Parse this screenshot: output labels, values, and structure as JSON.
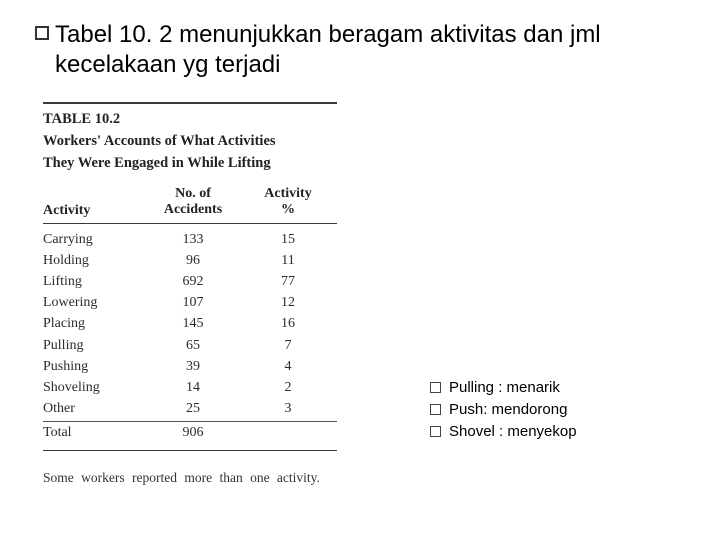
{
  "title": "Tabel 10. 2 menunjukkan beragam aktivitas dan jml kecelakaan yg terjadi",
  "table": {
    "caption_label": "TABLE 10.2",
    "caption_line1": "Workers' Accounts of What Activities",
    "caption_line2": "They Were Engaged in While Lifting",
    "headers": {
      "activity": "Activity",
      "no_of": "No. of",
      "accidents": "Accidents",
      "act2": "Activity",
      "pct": "%"
    },
    "rows": [
      {
        "a": "Carrying",
        "n": "133",
        "p": "15"
      },
      {
        "a": "Holding",
        "n": "96",
        "p": "11"
      },
      {
        "a": "Lifting",
        "n": "692",
        "p": "77"
      },
      {
        "a": "Lowering",
        "n": "107",
        "p": "12"
      },
      {
        "a": "Placing",
        "n": "145",
        "p": "16"
      },
      {
        "a": "Pulling",
        "n": "65",
        "p": "7"
      },
      {
        "a": "Pushing",
        "n": "39",
        "p": "4"
      },
      {
        "a": "Shoveling",
        "n": "14",
        "p": "2"
      },
      {
        "a": "Other",
        "n": "25",
        "p": "3"
      }
    ],
    "total": {
      "a": "Total",
      "n": "906",
      "p": ""
    },
    "footnote": "Some workers reported more than one activity."
  },
  "legend": {
    "items": [
      "Pulling : menarik",
      "Push: mendorong",
      "Shovel : menyekop"
    ]
  }
}
